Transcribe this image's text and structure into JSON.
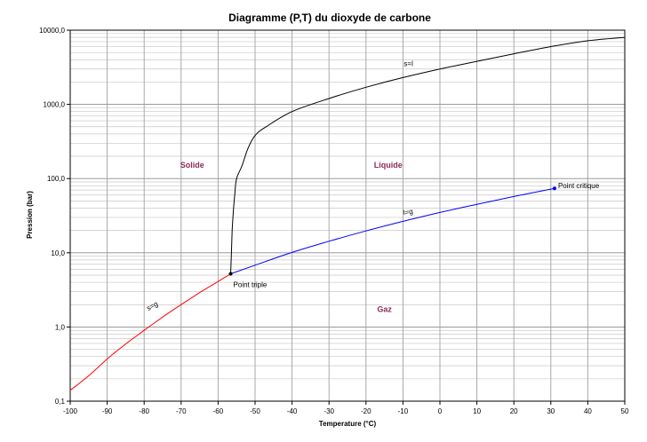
{
  "chart_data": {
    "type": "line",
    "title": "Diagramme (P,T) du dioxyde de carbone",
    "xlabel": "Temperature (°C)",
    "ylabel": "Pression (bar)",
    "xlim": [
      -100,
      50
    ],
    "ylim": [
      0.1,
      10000
    ],
    "y_scale": "log",
    "grid": true,
    "legend": "none",
    "x_ticks": [
      "-100",
      "-90",
      "-80",
      "-70",
      "-60",
      "-50",
      "-40",
      "-30",
      "-20",
      "-10",
      "0",
      "10",
      "20",
      "30",
      "40",
      "50"
    ],
    "y_ticks": [
      {
        "value": 0.1,
        "label": "0,1"
      },
      {
        "value": 1,
        "label": "1,0"
      },
      {
        "value": 10,
        "label": "10,0"
      },
      {
        "value": 100,
        "label": "100,0"
      },
      {
        "value": 1000,
        "label": "1000,0"
      },
      {
        "value": 10000,
        "label": "10000,0"
      }
    ],
    "series": [
      {
        "name": "s=l",
        "color": "#000000",
        "points": [
          [
            -56.6,
            5.2
          ],
          [
            -56.4,
            10
          ],
          [
            -56.2,
            20
          ],
          [
            -55.9,
            35
          ],
          [
            -55.5,
            60
          ],
          [
            -55,
            100
          ],
          [
            -53.5,
            150
          ],
          [
            -52,
            250
          ],
          [
            -50,
            380
          ],
          [
            -47,
            500
          ],
          [
            -40,
            800
          ],
          [
            -30,
            1200
          ],
          [
            -20,
            1700
          ],
          [
            -10,
            2300
          ],
          [
            0,
            3000
          ],
          [
            10,
            3800
          ],
          [
            20,
            4800
          ],
          [
            30,
            6000
          ],
          [
            40,
            7200
          ],
          [
            50,
            8000
          ]
        ]
      },
      {
        "name": "l=g",
        "color": "#0000ff",
        "points": [
          [
            -56.6,
            5.2
          ],
          [
            -50,
            6.8
          ],
          [
            -40,
            10.1
          ],
          [
            -30,
            14.3
          ],
          [
            -20,
            19.7
          ],
          [
            -10,
            26.5
          ],
          [
            0,
            34.9
          ],
          [
            10,
            45.0
          ],
          [
            20,
            57.3
          ],
          [
            31,
            73.8
          ]
        ]
      },
      {
        "name": "s=g",
        "color": "#ff0000",
        "points": [
          [
            -100,
            0.14
          ],
          [
            -95,
            0.22
          ],
          [
            -90,
            0.37
          ],
          [
            -85,
            0.59
          ],
          [
            -80,
            0.9
          ],
          [
            -75,
            1.36
          ],
          [
            -70,
            2.0
          ],
          [
            -65,
            2.9
          ],
          [
            -60,
            4.1
          ],
          [
            -56.6,
            5.2
          ]
        ]
      }
    ],
    "points": [
      {
        "name": "Point triple",
        "x": -56.6,
        "y": 5.2
      },
      {
        "name": "Point critique",
        "x": 31,
        "y": 73.8
      }
    ],
    "regions": [
      {
        "label": "Solide",
        "x": -67,
        "y": 140
      },
      {
        "label": "Liquide",
        "x": -14,
        "y": 140
      },
      {
        "label": "Gaz",
        "x": -15,
        "y": 1.6
      }
    ],
    "annotations": [
      {
        "text": "s=l",
        "x": -8.5,
        "y": 3300,
        "rotate": 0
      },
      {
        "text": "l=g",
        "x": -8.5,
        "y": 33,
        "rotate": -10
      },
      {
        "text": "s=g",
        "x": -77.5,
        "y": 1.8,
        "rotate": -28
      }
    ]
  }
}
